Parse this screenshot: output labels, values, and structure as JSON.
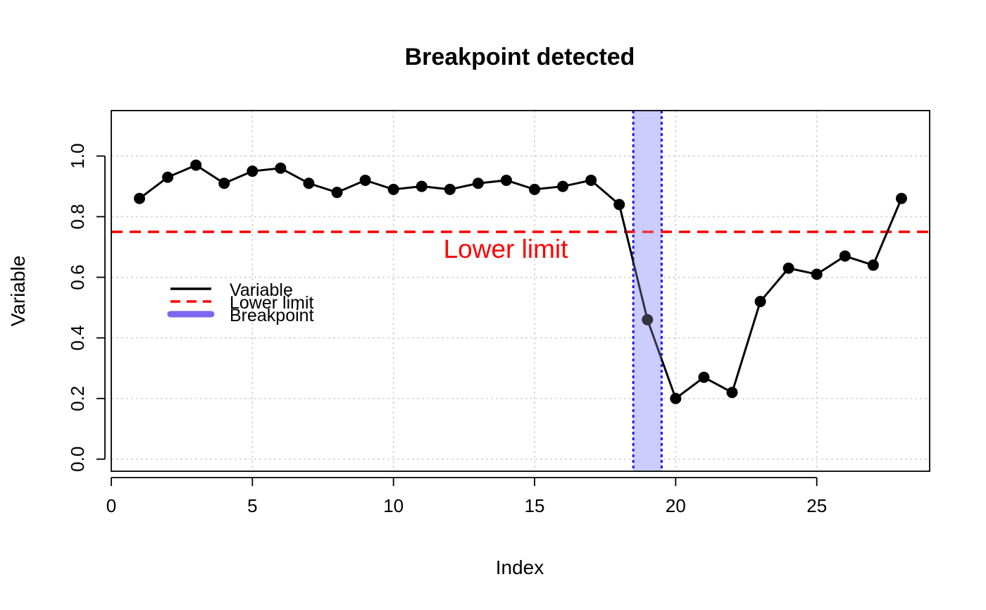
{
  "chart_data": {
    "type": "line",
    "title": "Breakpoint detected",
    "xlabel": "Index",
    "ylabel": "Variable",
    "xlim": [
      0,
      29
    ],
    "ylim": [
      -0.04,
      1.15
    ],
    "xticks": [
      0,
      5,
      10,
      15,
      20,
      25
    ],
    "yticks": [
      0.0,
      0.2,
      0.4,
      0.6,
      0.8,
      1.0
    ],
    "ytick_labels": [
      "0.0",
      "0.2",
      "0.4",
      "0.6",
      "0.8",
      "1.0"
    ],
    "grid": true,
    "series": [
      {
        "name": "Variable",
        "color": "#000000",
        "x": [
          1,
          2,
          3,
          4,
          5,
          6,
          7,
          8,
          9,
          10,
          11,
          12,
          13,
          14,
          15,
          16,
          17,
          18,
          19,
          20,
          21,
          22,
          23,
          24,
          25,
          26,
          27,
          28
        ],
        "y": [
          0.86,
          0.93,
          0.97,
          0.91,
          0.95,
          0.96,
          0.91,
          0.88,
          0.92,
          0.89,
          0.9,
          0.89,
          0.91,
          0.92,
          0.89,
          0.9,
          0.92,
          0.84,
          0.46,
          0.2,
          0.27,
          0.22,
          0.52,
          0.63,
          0.61,
          0.67,
          0.64,
          0.86
        ]
      }
    ],
    "lower_limit": {
      "name": "Lower limit",
      "value": 0.75,
      "color": "#ff0000",
      "label": "Lower limit"
    },
    "breakpoint": {
      "name": "Breakpoint",
      "x_start": 18.5,
      "x_end": 19.5,
      "fill": "#ccccff",
      "border": "#0000ff",
      "legend_color": "#7b68ee"
    },
    "legend": {
      "position": "left",
      "entries": [
        "Variable",
        "Lower limit",
        "Breakpoint"
      ]
    }
  }
}
